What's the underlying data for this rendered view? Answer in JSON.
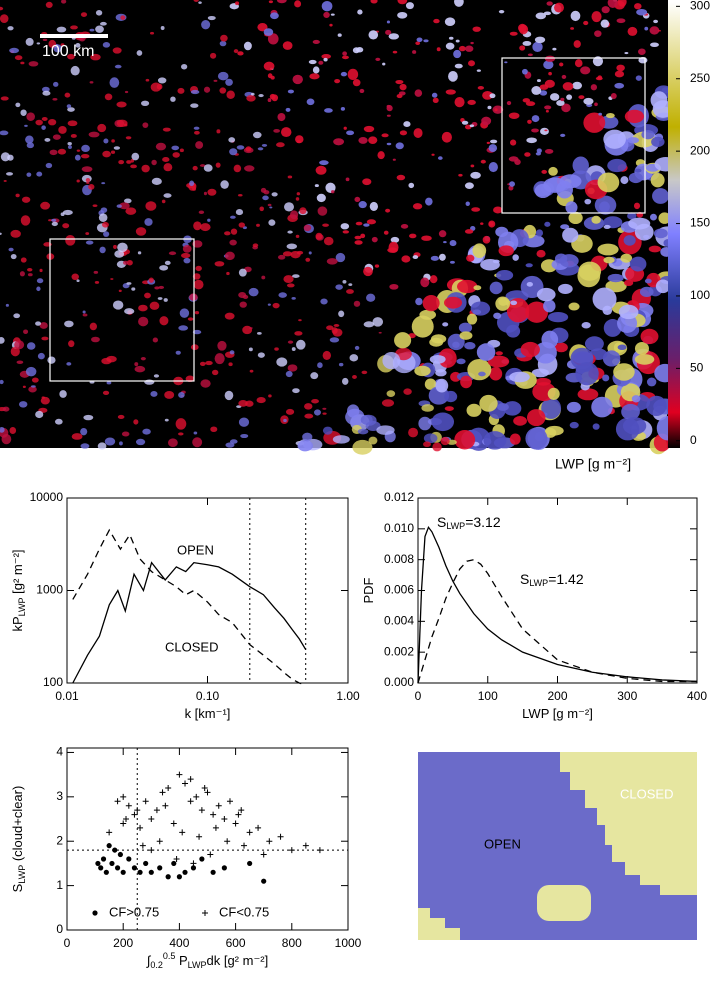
{
  "chart_data": [
    {
      "type": "image",
      "scale_bar": "100 km",
      "colorbar_label": "LWP [g m⁻²]",
      "clim": [
        -5,
        303
      ],
      "cticks": [
        0,
        50,
        100,
        150,
        200,
        250,
        300
      ]
    },
    {
      "type": "line",
      "log_x": true,
      "log_y": true,
      "xlabel": [
        {
          "text": "k [km⁻¹]"
        }
      ],
      "ylabel": [
        {
          "text": "kP"
        },
        {
          "text": "LWP",
          "pos": "sub"
        },
        {
          "text": " [g² m⁻²]"
        }
      ],
      "xlim": [
        0.01,
        1
      ],
      "ylim": [
        100,
        10000
      ],
      "xticks": [
        0.01,
        {
          "value": 0.1,
          "label": "0.10"
        },
        {
          "value": 1,
          "label": "1.00"
        }
      ],
      "yticks": [
        100,
        1000,
        10000
      ],
      "vlines": [
        0.2,
        0.5
      ],
      "series": [
        {
          "name": "OPEN",
          "color": "#000000",
          "style": "solid",
          "x": [
            0.011,
            0.014,
            0.017,
            0.02,
            0.023,
            0.026,
            0.03,
            0.035,
            0.04,
            0.05,
            0.06,
            0.07,
            0.08,
            0.1,
            0.12,
            0.15,
            0.2,
            0.25,
            0.3,
            0.35,
            0.4,
            0.45,
            0.5
          ],
          "values": [
            100,
            200,
            320,
            700,
            1000,
            600,
            1500,
            1000,
            2000,
            1300,
            1800,
            1600,
            2000,
            1900,
            1800,
            1500,
            1100,
            900,
            650,
            500,
            380,
            300,
            230
          ]
        },
        {
          "name": "CLOSED",
          "color": "#000000",
          "style": "dashed",
          "x": [
            0.011,
            0.014,
            0.017,
            0.02,
            0.024,
            0.028,
            0.033,
            0.04,
            0.05,
            0.06,
            0.07,
            0.08,
            0.1,
            0.12,
            0.15,
            0.2,
            0.25,
            0.3,
            0.35,
            0.4,
            0.45,
            0.5
          ],
          "values": [
            800,
            1500,
            2800,
            4500,
            2800,
            4000,
            2200,
            1600,
            1300,
            1100,
            900,
            1000,
            750,
            550,
            450,
            260,
            200,
            160,
            130,
            110,
            100,
            95
          ]
        }
      ]
    },
    {
      "type": "line",
      "xlabel": [
        {
          "text": "LWP [g m⁻²]"
        }
      ],
      "ylabel": [
        {
          "text": "PDF"
        }
      ],
      "xlim": [
        0,
        400
      ],
      "ylim": [
        0,
        0.012
      ],
      "xticks": [
        0,
        100,
        200,
        300,
        400
      ],
      "yticks": [
        {
          "value": 0,
          "label": "0.000"
        },
        {
          "value": 0.002,
          "label": "0.002"
        },
        {
          "value": 0.004,
          "label": "0.004"
        },
        {
          "value": 0.006,
          "label": "0.006"
        },
        {
          "value": 0.008,
          "label": "0.008"
        },
        {
          "value": 0.01,
          "label": "0.010"
        },
        {
          "value": 0.012,
          "label": "0.012"
        }
      ],
      "annotations": [
        [
          {
            "text": "S"
          },
          {
            "text": "LWP",
            "pos": "sub"
          },
          {
            "text": "=3.12"
          }
        ],
        [
          {
            "text": "S"
          },
          {
            "text": "LWP",
            "pos": "sub"
          },
          {
            "text": "=1.42"
          }
        ]
      ],
      "series": [
        {
          "color": "#000000",
          "style": "solid",
          "x": [
            0,
            5,
            10,
            15,
            20,
            30,
            40,
            50,
            60,
            80,
            100,
            120,
            150,
            200,
            250,
            300,
            350,
            400
          ],
          "values": [
            0,
            0.006,
            0.0095,
            0.0101,
            0.0098,
            0.0088,
            0.0076,
            0.0066,
            0.0058,
            0.0045,
            0.0035,
            0.0028,
            0.002,
            0.0012,
            0.0007,
            0.0004,
            0.0002,
            0.0001
          ]
        },
        {
          "color": "#000000",
          "style": "dashed",
          "x": [
            0,
            10,
            20,
            30,
            40,
            50,
            60,
            70,
            80,
            90,
            100,
            120,
            150,
            200,
            250,
            300,
            350,
            400
          ],
          "values": [
            0,
            0.0015,
            0.003,
            0.0042,
            0.0055,
            0.0065,
            0.0074,
            0.0079,
            0.008,
            0.0077,
            0.0071,
            0.0056,
            0.0035,
            0.0015,
            0.0007,
            0.0003,
            0.0001,
            0.0001
          ]
        }
      ]
    },
    {
      "type": "scatter",
      "xlabel": [
        {
          "text": "∫"
        },
        {
          "text": "0.2",
          "pos": "sub"
        },
        {
          "text": "0.5",
          "pos": "sup"
        },
        {
          "text": " P"
        },
        {
          "text": "LWP",
          "pos": "sub"
        },
        {
          "text": "dk [g² m⁻²]"
        }
      ],
      "ylabel": [
        {
          "text": "S"
        },
        {
          "text": "LWP",
          "pos": "sub"
        },
        {
          "text": " (cloud+clear)"
        }
      ],
      "xlim": [
        0,
        1000
      ],
      "ylim": [
        0,
        4.1
      ],
      "xticks": [
        0,
        200,
        400,
        600,
        800,
        1000
      ],
      "yticks": [
        0,
        1,
        2,
        3,
        4
      ],
      "vlines": [
        250
      ],
      "hlines": [
        1.8
      ],
      "series": [
        {
          "name": "CF>0.75",
          "color": "#000000",
          "marker": "dot",
          "x": [
            110,
            120,
            130,
            140,
            150,
            160,
            170,
            180,
            190,
            200,
            220,
            240,
            260,
            280,
            300,
            330,
            360,
            380,
            400,
            420,
            450,
            480,
            520,
            560,
            650,
            700
          ],
          "values": [
            1.5,
            1.4,
            1.6,
            1.3,
            1.9,
            1.5,
            1.8,
            1.4,
            1.7,
            1.3,
            1.6,
            1.4,
            1.3,
            1.5,
            1.3,
            1.4,
            1.2,
            1.5,
            1.2,
            1.3,
            1.4,
            1.6,
            1.3,
            1.4,
            1.5,
            1.1
          ]
        },
        {
          "name": "CF<0.75",
          "color": "#000000",
          "marker": "plus",
          "x": [
            180,
            200,
            220,
            240,
            260,
            280,
            300,
            320,
            340,
            360,
            380,
            400,
            420,
            440,
            460,
            480,
            500,
            520,
            540,
            560,
            580,
            600,
            620,
            650,
            680,
            720,
            760,
            800,
            850,
            900,
            150,
            210,
            270,
            330,
            390,
            450,
            510,
            570,
            630,
            700,
            350,
            410,
            470,
            530,
            300,
            250,
            200,
            440,
            490,
            610
          ],
          "values": [
            2.9,
            3.0,
            2.8,
            2.6,
            2.3,
            2.9,
            2.5,
            2.7,
            3.1,
            3.2,
            2.4,
            3.5,
            3.3,
            2.9,
            3.0,
            2.7,
            3.1,
            2.6,
            2.8,
            2.5,
            2.9,
            2.4,
            2.7,
            2.2,
            2.3,
            2.0,
            2.1,
            1.8,
            1.9,
            1.8,
            2.2,
            2.5,
            1.9,
            2.0,
            1.6,
            1.5,
            1.7,
            2.0,
            1.9,
            1.7,
            2.8,
            2.2,
            2.1,
            2.3,
            1.8,
            2.7,
            2.4,
            3.4,
            3.2,
            2.6
          ]
        }
      ]
    }
  ],
  "map": {
    "open_label": "OPEN",
    "closed_label": "CLOSED"
  }
}
